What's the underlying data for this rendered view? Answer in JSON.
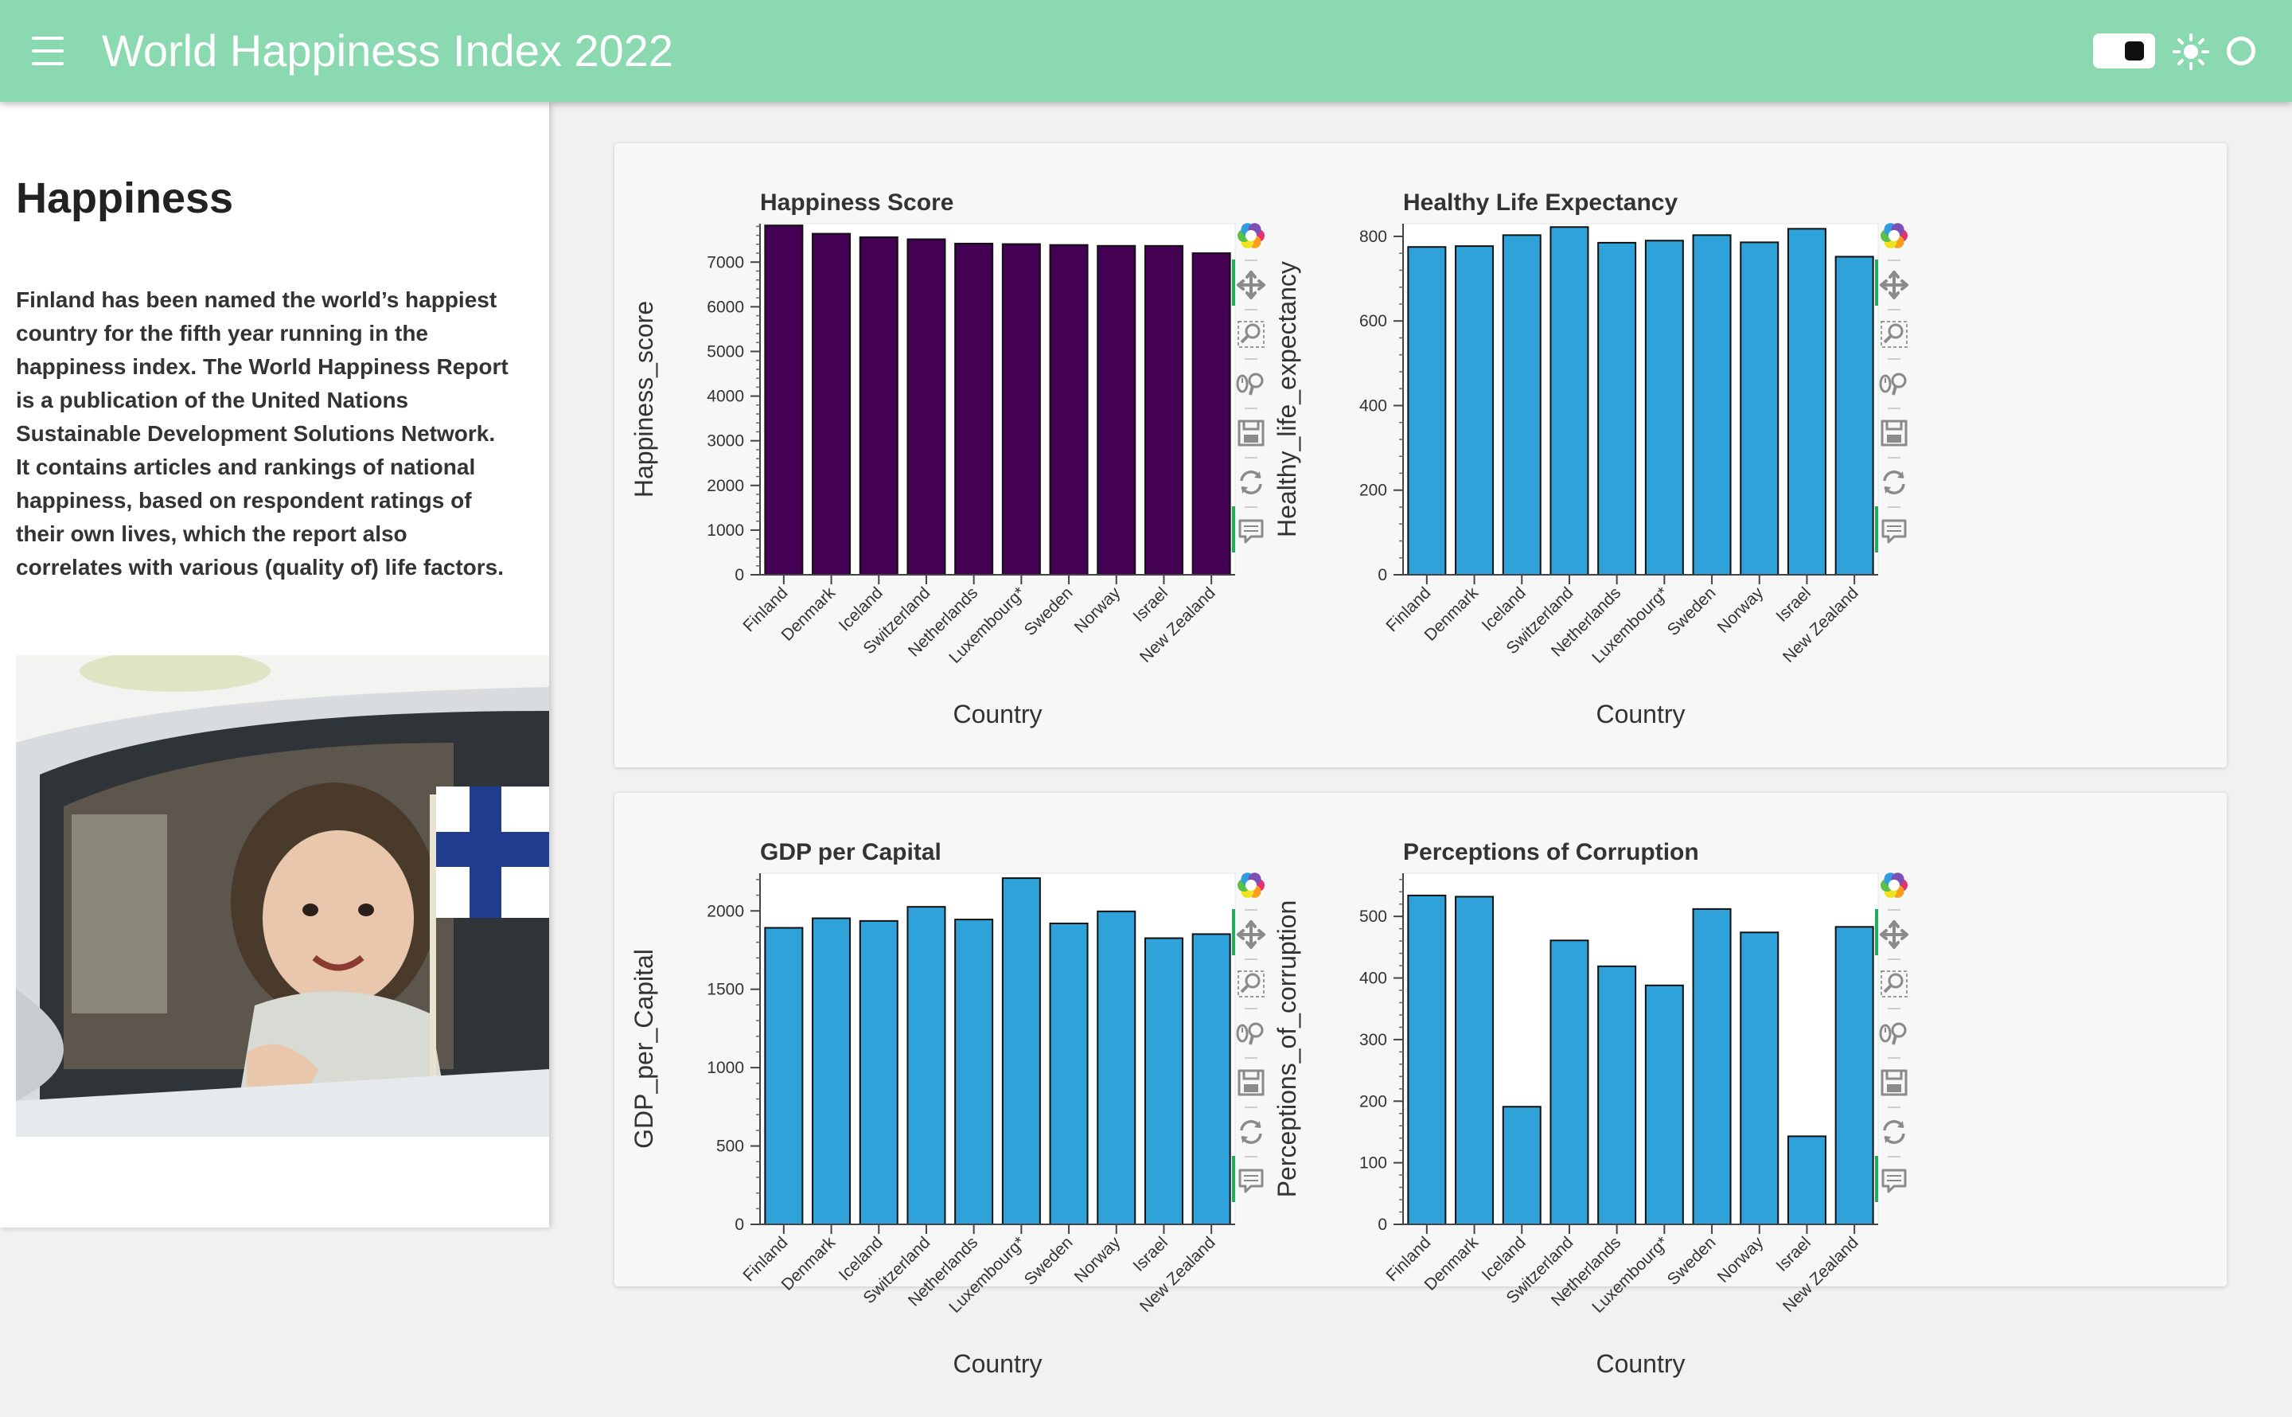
{
  "header": {
    "title": "World Happiness Index 2022"
  },
  "sidebar": {
    "heading": "Happiness",
    "description": "Finland has been named the world’s happiest country for the fifth year running in the happiness index. The World Happiness Report is a publication of the United Nations Sustainable Development Solutions Network. It contains articles and rankings of national happiness, based on respondent ratings of their own lives, which the report also correlates with various (quality of) life factors."
  },
  "toolbar_icons": [
    "bokeh-logo-icon",
    "pan-icon",
    "box-zoom-icon",
    "wheel-zoom-icon",
    "save-icon",
    "reset-icon",
    "hover-icon"
  ],
  "colors": {
    "header_bg": "#8bd9b0",
    "happiness_bar": "#440154",
    "default_bar": "#30a2da"
  },
  "chart_data": [
    {
      "type": "bar",
      "title": "Happiness Score",
      "xlabel": "Country",
      "ylabel": "Happiness_score",
      "categories": [
        "Finland",
        "Denmark",
        "Iceland",
        "Switzerland",
        "Netherlands",
        "Luxembourg*",
        "Sweden",
        "Norway",
        "Israel",
        "New Zealand"
      ],
      "values": [
        7821,
        7636,
        7557,
        7512,
        7415,
        7404,
        7384,
        7365,
        7364,
        7200
      ],
      "ylim": [
        0,
        7860
      ],
      "yticks": [
        0,
        1000,
        2000,
        3000,
        4000,
        5000,
        6000,
        7000
      ],
      "color": "#440154"
    },
    {
      "type": "bar",
      "title": "Healthy Life Expectancy",
      "xlabel": "Country",
      "ylabel": "Healthy_life_expectancy",
      "categories": [
        "Finland",
        "Denmark",
        "Iceland",
        "Switzerland",
        "Netherlands",
        "Luxembourg*",
        "Sweden",
        "Norway",
        "Israel",
        "New Zealand"
      ],
      "values": [
        775,
        777,
        803,
        822,
        785,
        790,
        803,
        786,
        818,
        752
      ],
      "ylim": [
        0,
        830
      ],
      "yticks": [
        0,
        200,
        400,
        600,
        800
      ],
      "color": "#30a2da"
    },
    {
      "type": "bar",
      "title": "GDP per Capital",
      "xlabel": "Country",
      "ylabel": "GDP_per_Capital",
      "categories": [
        "Finland",
        "Denmark",
        "Iceland",
        "Switzerland",
        "Netherlands",
        "Luxembourg*",
        "Sweden",
        "Norway",
        "Israel",
        "New Zealand"
      ],
      "values": [
        1892,
        1953,
        1936,
        2026,
        1945,
        2209,
        1920,
        1997,
        1826,
        1852
      ],
      "ylim": [
        0,
        2240
      ],
      "yticks": [
        0,
        500,
        1000,
        1500,
        2000
      ],
      "color": "#30a2da"
    },
    {
      "type": "bar",
      "title": "Perceptions of Corruption",
      "xlabel": "Country",
      "ylabel": "Perceptions_of_corruption",
      "categories": [
        "Finland",
        "Denmark",
        "Iceland",
        "Switzerland",
        "Netherlands",
        "Luxembourg*",
        "Sweden",
        "Norway",
        "Israel",
        "New Zealand"
      ],
      "values": [
        534,
        532,
        191,
        461,
        419,
        388,
        512,
        474,
        143,
        483
      ],
      "ylim": [
        0,
        570
      ],
      "yticks": [
        0,
        100,
        200,
        300,
        400,
        500
      ],
      "color": "#30a2da"
    }
  ]
}
